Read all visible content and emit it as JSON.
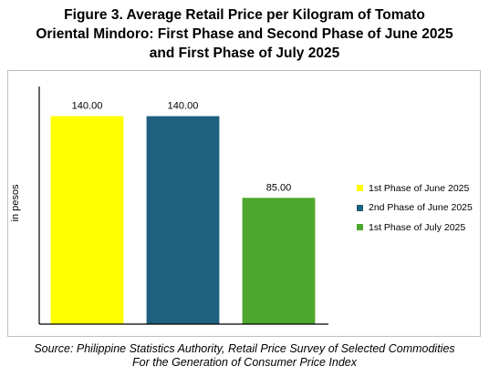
{
  "title_lines": [
    "Figure 3. Average Retail Price per Kilogram of Tomato",
    "Oriental Mindoro: First Phase and Second Phase of June 2025",
    "and First Phase of July 2025"
  ],
  "source_lines": [
    "Source: Philippine Statistics Authority, Retail Price Survey of Selected Commodities",
    "For the Generation of Consumer Price Index"
  ],
  "chart_data": {
    "type": "bar",
    "categories": [
      "1st Phase of June 2025",
      "2nd Phase of June 2025",
      "1st Phase of July 2025"
    ],
    "values": [
      140.0,
      140.0,
      85.0
    ],
    "data_labels": [
      "140.00",
      "140.00",
      "85.00"
    ],
    "colors": [
      "#ffff00",
      "#1f5f7f",
      "#4ea72e"
    ],
    "ylabel": "in pesos",
    "ylim": [
      0,
      160
    ],
    "grid": false,
    "legend_position": "right",
    "legend": [
      {
        "label": "1st Phase of June 2025",
        "color": "#ffff00"
      },
      {
        "label": "2nd Phase of June 2025",
        "color": "#1f5f7f"
      },
      {
        "label": "1st Phase of July 2025",
        "color": "#4ea72e"
      }
    ]
  }
}
